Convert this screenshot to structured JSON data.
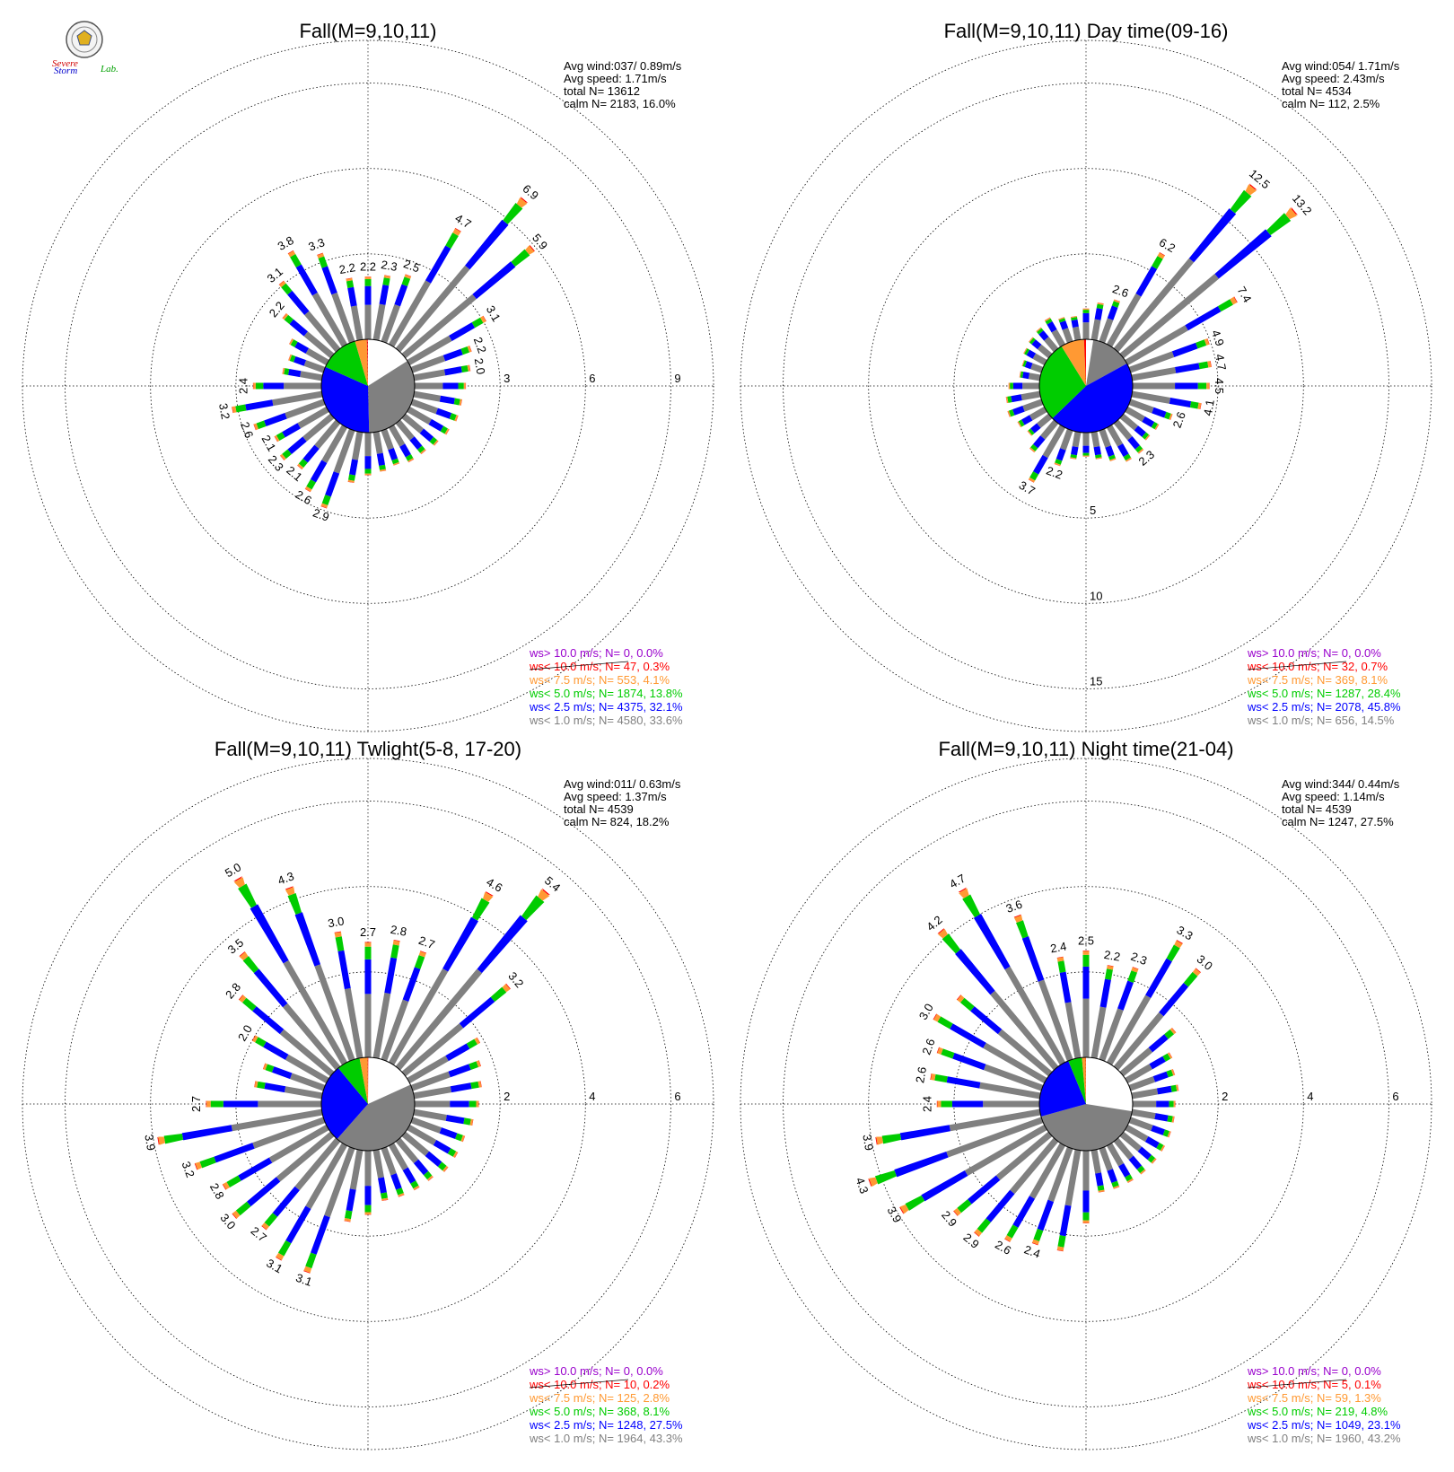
{
  "logo": {
    "line1": "Severe",
    "line2": "Storm",
    "line3": "Lab."
  },
  "colors": {
    "calm": "#ffffff",
    "c1": "#808080",
    "c2": "#0000ff",
    "c3": "#00cc00",
    "c4": "#ff9933",
    "c5": "#ff0000",
    "c6": "#9900cc"
  },
  "chart_data": [
    {
      "type": "windrose",
      "title": "Fall(M=9,10,11)",
      "stats": [
        "Avg wind:037/ 0.89m/s",
        "Avg speed: 1.71m/s",
        "total N=      13612",
        "calm N=   2183,  16.0%"
      ],
      "ring_labels": [
        "3",
        "6",
        "9"
      ],
      "ring_values": [
        3,
        6,
        9
      ],
      "r_max": 10.5,
      "legend": [
        {
          "text": "ws> 10.0 m/s; N=     0,  0.0%",
          "color": "#9900cc"
        },
        {
          "text": "ws< 10.0 m/s; N=    47,  0.3%",
          "color": "#ff0000"
        },
        {
          "text": "ws<  7.5 m/s; N=   553,  4.1%",
          "color": "#ff9933"
        },
        {
          "text": "ws<  5.0 m/s; N=  1874, 13.8%",
          "color": "#00cc00"
        },
        {
          "text": "ws<  2.5 m/s; N=  4375, 32.1%",
          "color": "#0000ff"
        },
        {
          "text": "ws<  1.0 m/s; N=  4580, 33.6%",
          "color": "#808080"
        }
      ],
      "pie": [
        16.0,
        33.6,
        32.1,
        13.8,
        4.1,
        0.3
      ],
      "directions": [
        0,
        10,
        20,
        30,
        40,
        50,
        60,
        70,
        80,
        90,
        100,
        110,
        120,
        130,
        140,
        150,
        160,
        170,
        180,
        190,
        200,
        210,
        220,
        230,
        240,
        250,
        260,
        270,
        280,
        290,
        300,
        310,
        320,
        330,
        340,
        350
      ],
      "totals": [
        2.2,
        2.3,
        2.5,
        4.7,
        6.9,
        5.9,
        3.1,
        2.2,
        2.0,
        1.8,
        1.7,
        1.7,
        1.6,
        1.5,
        1.4,
        1.4,
        1.3,
        1.4,
        1.5,
        1.8,
        2.9,
        2.6,
        2.1,
        2.3,
        2.1,
        2.6,
        3.2,
        2.4,
        1.4,
        1.3,
        1.5,
        2.2,
        3.1,
        3.8,
        3.3,
        2.2
      ],
      "labels": [
        "2.2",
        "2.3",
        "2.5",
        "4.7",
        "6.9",
        "5.9",
        "3.1",
        "2.2",
        "2.0",
        "",
        "",
        "",
        "",
        "",
        "",
        "",
        "",
        "",
        "",
        "",
        "2.9",
        "2.6",
        "2.1",
        "2.3",
        "2.1",
        "2.6",
        "3.2",
        "2.4",
        "",
        "",
        "",
        "2.2",
        "3.1",
        "3.8",
        "3.3",
        "2.2"
      ]
    },
    {
      "type": "windrose",
      "title": "Fall(M=9,10,11) Day time(09-16)",
      "stats": [
        "Avg wind:054/ 1.71m/s",
        "Avg speed: 2.43m/s",
        "total N=      4534",
        "calm N=    112,   2.5%"
      ],
      "ring_labels": [
        "5",
        "10",
        "15"
      ],
      "ring_values": [
        5,
        10,
        15
      ],
      "r_max": 17.5,
      "legend": [
        {
          "text": "ws> 10.0 m/s; N=     0,  0.0%",
          "color": "#9900cc"
        },
        {
          "text": "ws< 10.0 m/s; N=    32,  0.7%",
          "color": "#ff0000"
        },
        {
          "text": "ws<  7.5 m/s; N=   369,  8.1%",
          "color": "#ff9933"
        },
        {
          "text": "ws<  5.0 m/s; N=  1287, 28.4%",
          "color": "#00cc00"
        },
        {
          "text": "ws<  2.5 m/s; N=  2078, 45.8%",
          "color": "#0000ff"
        },
        {
          "text": "ws<  1.0 m/s; N=   656, 14.5%",
          "color": "#808080"
        }
      ],
      "pie": [
        2.5,
        14.5,
        45.8,
        28.4,
        8.1,
        0.7
      ],
      "directions": [
        0,
        10,
        20,
        30,
        40,
        50,
        60,
        70,
        80,
        90,
        100,
        110,
        120,
        130,
        140,
        150,
        160,
        170,
        180,
        190,
        200,
        210,
        220,
        230,
        240,
        250,
        260,
        270,
        280,
        290,
        300,
        310,
        320,
        330,
        340,
        350
      ],
      "totals": [
        1.8,
        2.2,
        2.6,
        6.2,
        12.5,
        13.2,
        7.4,
        4.9,
        4.7,
        4.5,
        4.1,
        2.6,
        2.1,
        2.0,
        2.3,
        2.3,
        1.9,
        1.6,
        1.4,
        1.6,
        2.2,
        3.7,
        2.2,
        1.6,
        1.8,
        2.1,
        2.0,
        1.8,
        1.2,
        1.2,
        1.4,
        1.5,
        1.6,
        1.8,
        1.5,
        1.4
      ],
      "labels": [
        "",
        "",
        "2.6",
        "6.2",
        "12.5",
        "13.2",
        "7.4",
        "4.9",
        "4.7",
        "4.5",
        "4.1",
        "2.6",
        "",
        "",
        "2.3",
        "",
        "",
        "",
        "",
        "",
        "2.2",
        "3.7",
        "",
        "",
        "",
        "",
        "",
        "",
        "",
        "",
        "",
        "",
        "",
        "",
        "",
        ""
      ]
    },
    {
      "type": "windrose",
      "title": "Fall(M=9,10,11) Twlight(5-8, 17-20)",
      "stats": [
        "Avg wind:011/ 0.63m/s",
        "Avg speed: 1.37m/s",
        "total N=      4539",
        "calm N=    824,  18.2%"
      ],
      "ring_labels": [
        "2",
        "4",
        "6"
      ],
      "ring_values": [
        2,
        4,
        6
      ],
      "r_max": 7.0,
      "legend": [
        {
          "text": "ws> 10.0 m/s; N=     0,  0.0%",
          "color": "#9900cc"
        },
        {
          "text": "ws< 10.0 m/s; N=    10,  0.2%",
          "color": "#ff0000"
        },
        {
          "text": "ws<  7.5 m/s; N=   125,  2.8%",
          "color": "#ff9933"
        },
        {
          "text": "ws<  5.0 m/s; N=   368,  8.1%",
          "color": "#00cc00"
        },
        {
          "text": "ws<  2.5 m/s; N=  1248, 27.5%",
          "color": "#0000ff"
        },
        {
          "text": "ws<  1.0 m/s; N=  1964, 43.3%",
          "color": "#808080"
        }
      ],
      "pie": [
        18.2,
        43.3,
        27.5,
        8.1,
        2.8,
        0.2
      ],
      "directions": [
        0,
        10,
        20,
        30,
        40,
        50,
        60,
        70,
        80,
        90,
        100,
        110,
        120,
        130,
        140,
        150,
        160,
        170,
        180,
        190,
        200,
        210,
        220,
        230,
        240,
        250,
        260,
        270,
        280,
        290,
        300,
        310,
        320,
        330,
        340,
        350
      ],
      "totals": [
        2.7,
        2.8,
        2.7,
        4.6,
        5.4,
        3.2,
        1.9,
        1.7,
        1.6,
        1.5,
        1.4,
        1.3,
        1.3,
        1.3,
        1.2,
        1.2,
        1.2,
        1.2,
        1.5,
        1.7,
        3.1,
        3.1,
        2.7,
        3.0,
        2.8,
        3.2,
        3.9,
        2.7,
        1.6,
        1.5,
        2.0,
        2.8,
        3.5,
        5.0,
        4.3,
        3.0
      ],
      "labels": [
        "2.7",
        "2.8",
        "2.7",
        "4.6",
        "5.4",
        "3.2",
        "",
        "",
        "",
        "",
        "",
        "",
        "",
        "",
        "",
        "",
        "",
        "",
        "",
        "",
        "3.1",
        "3.1",
        "2.7",
        "3.0",
        "2.8",
        "3.2",
        "3.9",
        "2.7",
        "",
        "",
        "2.0",
        "2.8",
        "3.5",
        "5.0",
        "4.3",
        "3.0"
      ]
    },
    {
      "type": "windrose",
      "title": "Fall(M=9,10,11) Night time(21-04)",
      "stats": [
        "Avg wind:344/ 0.44m/s",
        "Avg speed: 1.14m/s",
        "total N=      4539",
        "calm N=   1247,  27.5%"
      ],
      "ring_labels": [
        "2",
        "4",
        "6"
      ],
      "ring_values": [
        2,
        4,
        6
      ],
      "r_max": 7.0,
      "legend": [
        {
          "text": "ws> 10.0 m/s; N=     0,  0.0%",
          "color": "#9900cc"
        },
        {
          "text": "ws< 10.0 m/s; N=     5,  0.1%",
          "color": "#ff0000"
        },
        {
          "text": "ws<  7.5 m/s; N=    59,  1.3%",
          "color": "#ff9933"
        },
        {
          "text": "ws<  5.0 m/s; N=   219,  4.8%",
          "color": "#00cc00"
        },
        {
          "text": "ws<  2.5 m/s; N=  1049, 23.1%",
          "color": "#0000ff"
        },
        {
          "text": "ws<  1.0 m/s; N=  1960, 43.2%",
          "color": "#808080"
        }
      ],
      "pie": [
        27.5,
        43.2,
        23.1,
        4.8,
        1.3,
        0.1
      ],
      "directions": [
        0,
        10,
        20,
        30,
        40,
        50,
        60,
        70,
        80,
        90,
        100,
        110,
        120,
        130,
        140,
        150,
        160,
        170,
        180,
        190,
        200,
        210,
        220,
        230,
        240,
        250,
        260,
        270,
        280,
        290,
        300,
        310,
        320,
        330,
        340,
        350
      ],
      "totals": [
        2.5,
        2.2,
        2.3,
        3.3,
        3.0,
        1.6,
        1.2,
        1.1,
        1.1,
        1.0,
        1.0,
        1.0,
        1.0,
        1.0,
        1.0,
        1.0,
        1.0,
        1.0,
        1.7,
        2.4,
        2.4,
        2.6,
        2.9,
        2.9,
        3.9,
        4.3,
        3.9,
        2.4,
        2.6,
        2.6,
        3.0,
        2.8,
        4.2,
        4.7,
        3.6,
        2.4
      ],
      "labels": [
        "2.5",
        "2.2",
        "2.3",
        "3.3",
        "3.0",
        "",
        "",
        "",
        "",
        "",
        "",
        "",
        "",
        "",
        "",
        "",
        "",
        "",
        "",
        "",
        "2.4",
        "2.6",
        "2.9",
        "2.9",
        "3.9",
        "4.3",
        "3.9",
        "2.4",
        "2.6",
        "2.6",
        "3.0",
        "",
        "4.2",
        "4.7",
        "3.6",
        "2.4"
      ]
    }
  ]
}
